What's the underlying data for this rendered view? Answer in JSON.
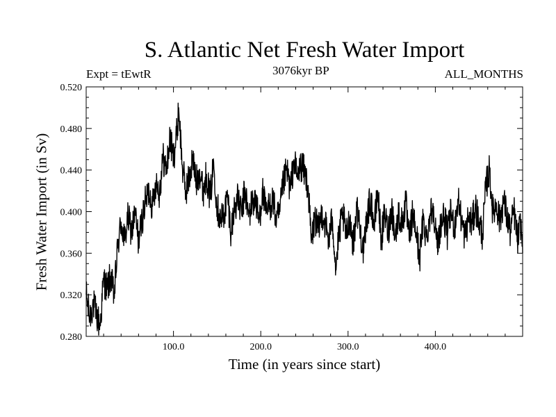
{
  "chart_data": {
    "type": "line",
    "title": "S. Atlantic Net Fresh Water Import",
    "subtitle": "3076kyr BP",
    "left_label": "Expt = tEwtR",
    "right_label": "ALL_MONTHS",
    "xlabel": "Time (in years since start)",
    "ylabel": "Fresh Water Import (in Sv)",
    "xlim": [
      0,
      500
    ],
    "ylim": [
      0.28,
      0.52
    ],
    "x_ticks": [
      100,
      200,
      300,
      400
    ],
    "x_tick_labels": [
      "100.0",
      "200.0",
      "300.0",
      "400.0"
    ],
    "y_ticks": [
      0.28,
      0.32,
      0.36,
      0.4,
      0.44,
      0.48,
      0.52
    ],
    "y_tick_labels": [
      "0.280",
      "0.320",
      "0.360",
      "0.400",
      "0.440",
      "0.480",
      "0.520"
    ],
    "series": [
      {
        "name": "fresh water import",
        "x": [
          0,
          4,
          8,
          12,
          16,
          20,
          24,
          28,
          32,
          36,
          40,
          44,
          48,
          52,
          56,
          60,
          64,
          68,
          72,
          76,
          80,
          84,
          88,
          92,
          96,
          100,
          104,
          106,
          110,
          114,
          118,
          122,
          126,
          130,
          134,
          138,
          142,
          146,
          150,
          154,
          158,
          162,
          166,
          170,
          174,
          178,
          182,
          186,
          190,
          194,
          198,
          202,
          206,
          210,
          214,
          218,
          222,
          226,
          230,
          234,
          238,
          242,
          246,
          250,
          254,
          258,
          262,
          266,
          270,
          274,
          278,
          282,
          286,
          290,
          294,
          298,
          302,
          306,
          310,
          314,
          318,
          322,
          326,
          330,
          334,
          338,
          342,
          346,
          350,
          354,
          358,
          362,
          366,
          370,
          374,
          378,
          382,
          386,
          390,
          394,
          398,
          402,
          406,
          410,
          414,
          418,
          422,
          426,
          430,
          434,
          438,
          442,
          446,
          450,
          454,
          458,
          462,
          466,
          470,
          474,
          478,
          482,
          486,
          490,
          494,
          498,
          500
        ],
        "values": [
          0.32,
          0.298,
          0.312,
          0.3,
          0.29,
          0.335,
          0.325,
          0.338,
          0.318,
          0.365,
          0.39,
          0.372,
          0.395,
          0.38,
          0.398,
          0.372,
          0.392,
          0.41,
          0.42,
          0.405,
          0.43,
          0.418,
          0.452,
          0.44,
          0.47,
          0.452,
          0.476,
          0.5,
          0.445,
          0.42,
          0.432,
          0.452,
          0.428,
          0.44,
          0.42,
          0.436,
          0.412,
          0.448,
          0.405,
          0.392,
          0.398,
          0.415,
          0.38,
          0.405,
          0.412,
          0.398,
          0.422,
          0.395,
          0.408,
          0.412,
          0.39,
          0.42,
          0.398,
          0.405,
          0.412,
          0.39,
          0.4,
          0.428,
          0.44,
          0.42,
          0.45,
          0.432,
          0.445,
          0.438,
          0.425,
          0.37,
          0.395,
          0.38,
          0.4,
          0.388,
          0.372,
          0.395,
          0.345,
          0.38,
          0.398,
          0.375,
          0.395,
          0.368,
          0.405,
          0.382,
          0.36,
          0.398,
          0.412,
          0.385,
          0.42,
          0.372,
          0.398,
          0.38,
          0.405,
          0.375,
          0.398,
          0.388,
          0.41,
          0.372,
          0.398,
          0.38,
          0.355,
          0.392,
          0.375,
          0.398,
          0.405,
          0.365,
          0.388,
          0.395,
          0.378,
          0.4,
          0.385,
          0.412,
          0.392,
          0.375,
          0.395,
          0.388,
          0.405,
          0.39,
          0.378,
          0.425,
          0.44,
          0.398,
          0.408,
          0.39,
          0.412,
          0.395,
          0.38,
          0.402,
          0.372,
          0.39,
          0.36
        ]
      }
    ]
  }
}
